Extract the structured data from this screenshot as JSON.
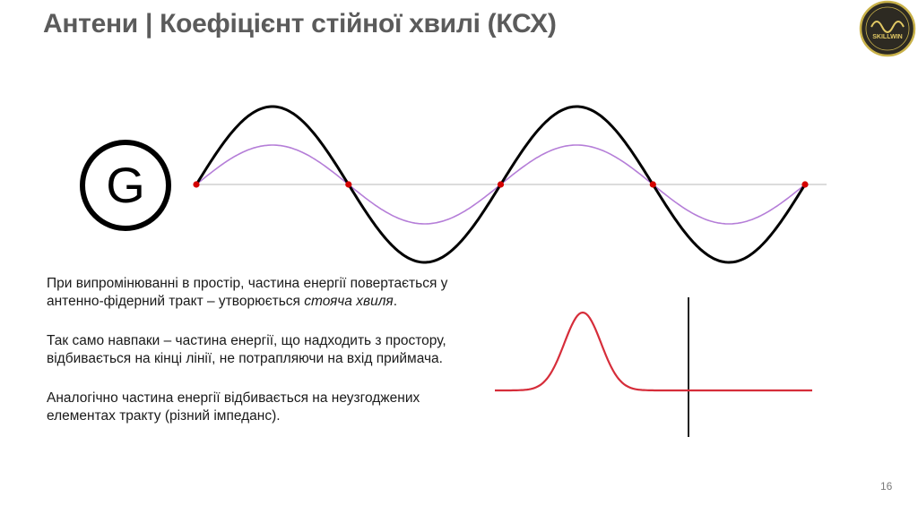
{
  "slide": {
    "title": "Антени | Коефіцієнт стійної хвилі (КСХ)",
    "page_number": "16",
    "logo_text": "SKILLWIN"
  },
  "diagram": {
    "generator_label": "G",
    "wave_colors": {
      "standing_wave": "#000000",
      "reflected_wave": "#b57ed8",
      "nodes": "#d40000",
      "axis": "#c8c8c8"
    },
    "pulse_color": "#d62d3a"
  },
  "text": {
    "paragraph_1_before": "При випромінюванні в простір, частина енергії повертається у антенно-фідерний тракт – утворюється ",
    "paragraph_1_emphasis": "стояча хвиля",
    "paragraph_1_after": ".",
    "paragraph_2": "Так само навпаки – частина енергії, що надходить з простору, відбивається на кінці лінії, не потрапляючи на вхід приймача.",
    "paragraph_3": "Аналогічно частина енергії відбивається на неузгоджених елементах тракту (різний імпеданс)."
  }
}
